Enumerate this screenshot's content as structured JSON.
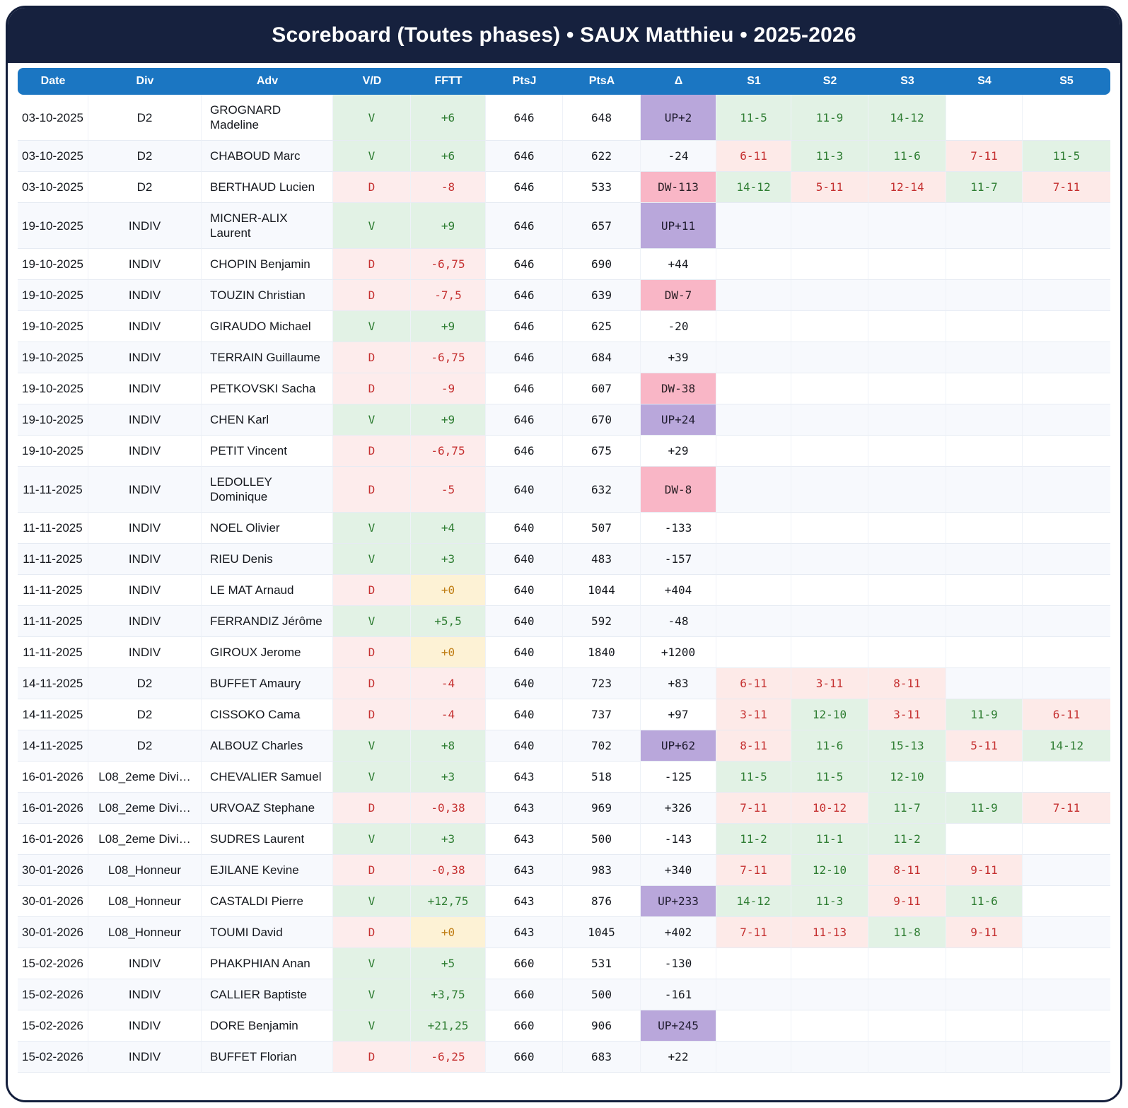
{
  "title": "Scoreboard (Toutes phases) • SAUX Matthieu • 2025-2026",
  "columns": [
    {
      "key": "date",
      "label": "Date"
    },
    {
      "key": "div",
      "label": "Div"
    },
    {
      "key": "adv",
      "label": "Adv"
    },
    {
      "key": "vd",
      "label": "V/D"
    },
    {
      "key": "fftt",
      "label": "FFTT"
    },
    {
      "key": "ptsj",
      "label": "PtsJ"
    },
    {
      "key": "ptsa",
      "label": "PtsA"
    },
    {
      "key": "delta",
      "label": "Δ"
    },
    {
      "key": "s1",
      "label": "S1"
    },
    {
      "key": "s2",
      "label": "S2"
    },
    {
      "key": "s3",
      "label": "S3"
    },
    {
      "key": "s4",
      "label": "S4"
    },
    {
      "key": "s5",
      "label": "S5"
    }
  ],
  "colors": {
    "navy_header": "#16213e",
    "column_header_blue": "#1b76c2",
    "win_bg": "#e2f2e5",
    "win_text": "#2e7d32",
    "loss_bg": "#fdecec",
    "loss_text": "#c53030",
    "zero_bg": "#fdf2d5",
    "zero_text": "#bf7c12",
    "promotion_bg": "#b9a7db",
    "relegation_bg": "#f9b6c6",
    "row_stripe": "#f7f9fd"
  },
  "rows": [
    {
      "date": "03-10-2025",
      "div": "D2",
      "adv": "GROGNARD Madeline",
      "vd": "V",
      "fftt": "+6",
      "ptsj": "646",
      "ptsa": "648",
      "delta": "UP+2",
      "sets": [
        "11-5",
        "11-9",
        "14-12",
        null,
        null
      ]
    },
    {
      "date": "03-10-2025",
      "div": "D2",
      "adv": "CHABOUD Marc",
      "vd": "V",
      "fftt": "+6",
      "ptsj": "646",
      "ptsa": "622",
      "delta": "-24",
      "sets": [
        "6-11",
        "11-3",
        "11-6",
        "7-11",
        "11-5"
      ]
    },
    {
      "date": "03-10-2025",
      "div": "D2",
      "adv": "BERTHAUD Lucien",
      "vd": "D",
      "fftt": "-8",
      "ptsj": "646",
      "ptsa": "533",
      "delta": "DW-113",
      "sets": [
        "14-12",
        "5-11",
        "12-14",
        "11-7",
        "7-11"
      ]
    },
    {
      "date": "19-10-2025",
      "div": "INDIV",
      "adv": "MICNER-ALIX Laurent",
      "vd": "V",
      "fftt": "+9",
      "ptsj": "646",
      "ptsa": "657",
      "delta": "UP+11",
      "sets": [
        null,
        null,
        null,
        null,
        null
      ]
    },
    {
      "date": "19-10-2025",
      "div": "INDIV",
      "adv": "CHOPIN Benjamin",
      "vd": "D",
      "fftt": "-6,75",
      "ptsj": "646",
      "ptsa": "690",
      "delta": "+44",
      "sets": [
        null,
        null,
        null,
        null,
        null
      ]
    },
    {
      "date": "19-10-2025",
      "div": "INDIV",
      "adv": "TOUZIN Christian",
      "vd": "D",
      "fftt": "-7,5",
      "ptsj": "646",
      "ptsa": "639",
      "delta": "DW-7",
      "sets": [
        null,
        null,
        null,
        null,
        null
      ]
    },
    {
      "date": "19-10-2025",
      "div": "INDIV",
      "adv": "GIRAUDO Michael",
      "vd": "V",
      "fftt": "+9",
      "ptsj": "646",
      "ptsa": "625",
      "delta": "-20",
      "sets": [
        null,
        null,
        null,
        null,
        null
      ]
    },
    {
      "date": "19-10-2025",
      "div": "INDIV",
      "adv": "TERRAIN Guillaume",
      "vd": "D",
      "fftt": "-6,75",
      "ptsj": "646",
      "ptsa": "684",
      "delta": "+39",
      "sets": [
        null,
        null,
        null,
        null,
        null
      ]
    },
    {
      "date": "19-10-2025",
      "div": "INDIV",
      "adv": "PETKOVSKI Sacha",
      "vd": "D",
      "fftt": "-9",
      "ptsj": "646",
      "ptsa": "607",
      "delta": "DW-38",
      "sets": [
        null,
        null,
        null,
        null,
        null
      ]
    },
    {
      "date": "19-10-2025",
      "div": "INDIV",
      "adv": "CHEN Karl",
      "vd": "V",
      "fftt": "+9",
      "ptsj": "646",
      "ptsa": "670",
      "delta": "UP+24",
      "sets": [
        null,
        null,
        null,
        null,
        null
      ]
    },
    {
      "date": "19-10-2025",
      "div": "INDIV",
      "adv": "PETIT Vincent",
      "vd": "D",
      "fftt": "-6,75",
      "ptsj": "646",
      "ptsa": "675",
      "delta": "+29",
      "sets": [
        null,
        null,
        null,
        null,
        null
      ]
    },
    {
      "date": "11-11-2025",
      "div": "INDIV",
      "adv": "LEDOLLEY Dominique",
      "vd": "D",
      "fftt": "-5",
      "ptsj": "640",
      "ptsa": "632",
      "delta": "DW-8",
      "sets": [
        null,
        null,
        null,
        null,
        null
      ]
    },
    {
      "date": "11-11-2025",
      "div": "INDIV",
      "adv": "NOEL Olivier",
      "vd": "V",
      "fftt": "+4",
      "ptsj": "640",
      "ptsa": "507",
      "delta": "-133",
      "sets": [
        null,
        null,
        null,
        null,
        null
      ]
    },
    {
      "date": "11-11-2025",
      "div": "INDIV",
      "adv": "RIEU Denis",
      "vd": "V",
      "fftt": "+3",
      "ptsj": "640",
      "ptsa": "483",
      "delta": "-157",
      "sets": [
        null,
        null,
        null,
        null,
        null
      ]
    },
    {
      "date": "11-11-2025",
      "div": "INDIV",
      "adv": "LE MAT Arnaud",
      "vd": "D",
      "fftt": "+0",
      "ptsj": "640",
      "ptsa": "1044",
      "delta": "+404",
      "sets": [
        null,
        null,
        null,
        null,
        null
      ]
    },
    {
      "date": "11-11-2025",
      "div": "INDIV",
      "adv": "FERRANDIZ Jérôme",
      "vd": "V",
      "fftt": "+5,5",
      "ptsj": "640",
      "ptsa": "592",
      "delta": "-48",
      "sets": [
        null,
        null,
        null,
        null,
        null
      ]
    },
    {
      "date": "11-11-2025",
      "div": "INDIV",
      "adv": "GIROUX Jerome",
      "vd": "D",
      "fftt": "+0",
      "ptsj": "640",
      "ptsa": "1840",
      "delta": "+1200",
      "sets": [
        null,
        null,
        null,
        null,
        null
      ]
    },
    {
      "date": "14-11-2025",
      "div": "D2",
      "adv": "BUFFET Amaury",
      "vd": "D",
      "fftt": "-4",
      "ptsj": "640",
      "ptsa": "723",
      "delta": "+83",
      "sets": [
        "6-11",
        "3-11",
        "8-11",
        null,
        null
      ]
    },
    {
      "date": "14-11-2025",
      "div": "D2",
      "adv": "CISSOKO Cama",
      "vd": "D",
      "fftt": "-4",
      "ptsj": "640",
      "ptsa": "737",
      "delta": "+97",
      "sets": [
        "3-11",
        "12-10",
        "3-11",
        "11-9",
        "6-11"
      ]
    },
    {
      "date": "14-11-2025",
      "div": "D2",
      "adv": "ALBOUZ Charles",
      "vd": "V",
      "fftt": "+8",
      "ptsj": "640",
      "ptsa": "702",
      "delta": "UP+62",
      "sets": [
        "8-11",
        "11-6",
        "15-13",
        "5-11",
        "14-12"
      ]
    },
    {
      "date": "16-01-2026",
      "div": "L08_2eme Divi…",
      "adv": "CHEVALIER Samuel",
      "vd": "V",
      "fftt": "+3",
      "ptsj": "643",
      "ptsa": "518",
      "delta": "-125",
      "sets": [
        "11-5",
        "11-5",
        "12-10",
        null,
        null
      ]
    },
    {
      "date": "16-01-2026",
      "div": "L08_2eme Divi…",
      "adv": "URVOAZ Stephane",
      "vd": "D",
      "fftt": "-0,38",
      "ptsj": "643",
      "ptsa": "969",
      "delta": "+326",
      "sets": [
        "7-11",
        "10-12",
        "11-7",
        "11-9",
        "7-11"
      ]
    },
    {
      "date": "16-01-2026",
      "div": "L08_2eme Divi…",
      "adv": "SUDRES Laurent",
      "vd": "V",
      "fftt": "+3",
      "ptsj": "643",
      "ptsa": "500",
      "delta": "-143",
      "sets": [
        "11-2",
        "11-1",
        "11-2",
        null,
        null
      ]
    },
    {
      "date": "30-01-2026",
      "div": "L08_Honneur",
      "adv": "EJILANE Kevine",
      "vd": "D",
      "fftt": "-0,38",
      "ptsj": "643",
      "ptsa": "983",
      "delta": "+340",
      "sets": [
        "7-11",
        "12-10",
        "8-11",
        "9-11",
        null
      ]
    },
    {
      "date": "30-01-2026",
      "div": "L08_Honneur",
      "adv": "CASTALDI Pierre",
      "vd": "V",
      "fftt": "+12,75",
      "ptsj": "643",
      "ptsa": "876",
      "delta": "UP+233",
      "sets": [
        "14-12",
        "11-3",
        "9-11",
        "11-6",
        null
      ]
    },
    {
      "date": "30-01-2026",
      "div": "L08_Honneur",
      "adv": "TOUMI David",
      "vd": "D",
      "fftt": "+0",
      "ptsj": "643",
      "ptsa": "1045",
      "delta": "+402",
      "sets": [
        "7-11",
        "11-13",
        "11-8",
        "9-11",
        null
      ]
    },
    {
      "date": "15-02-2026",
      "div": "INDIV",
      "adv": "PHAKPHIAN Anan",
      "vd": "V",
      "fftt": "+5",
      "ptsj": "660",
      "ptsa": "531",
      "delta": "-130",
      "sets": [
        null,
        null,
        null,
        null,
        null
      ]
    },
    {
      "date": "15-02-2026",
      "div": "INDIV",
      "adv": "CALLIER Baptiste",
      "vd": "V",
      "fftt": "+3,75",
      "ptsj": "660",
      "ptsa": "500",
      "delta": "-161",
      "sets": [
        null,
        null,
        null,
        null,
        null
      ]
    },
    {
      "date": "15-02-2026",
      "div": "INDIV",
      "adv": "DORE Benjamin",
      "vd": "V",
      "fftt": "+21,25",
      "ptsj": "660",
      "ptsa": "906",
      "delta": "UP+245",
      "sets": [
        null,
        null,
        null,
        null,
        null
      ]
    },
    {
      "date": "15-02-2026",
      "div": "INDIV",
      "adv": "BUFFET Florian",
      "vd": "D",
      "fftt": "-6,25",
      "ptsj": "660",
      "ptsa": "683",
      "delta": "+22",
      "sets": [
        null,
        null,
        null,
        null,
        null
      ]
    }
  ]
}
